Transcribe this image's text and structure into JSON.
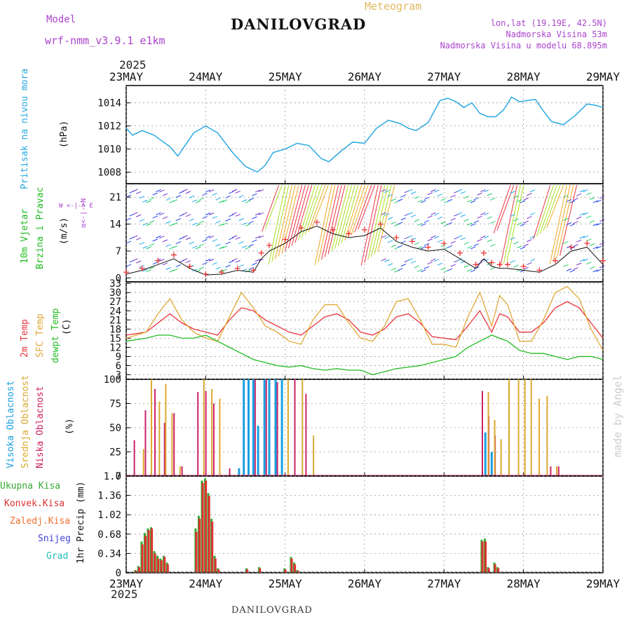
{
  "header": {
    "model_label": "Model",
    "model_name": "wrf-nmm_v3.9.1 e1km",
    "title": "DANILOVGRAD",
    "subtitle": "Meteogram",
    "lonlat": "lon,lat (19.19E, 42.5N)",
    "altitude": "Nadmorska Visina 53m",
    "model_altitude": "Nadmorska Visina u modelu 68.895m",
    "year_top": "2025",
    "year_bottom": "2025",
    "footer": "DANILOVGRAD",
    "watermark": "made by Angel"
  },
  "colors": {
    "pressure": "#2aa8e0",
    "t2m": "#e8343c",
    "sfc": "#e0a838",
    "dewpt": "#22bb22",
    "cloud_high": "#1a9ee0",
    "cloud_mid": "#dca830",
    "cloud_low": "#cc2266",
    "precip_total": "#33aa33",
    "precip_conv": "#e03030",
    "grid": "#999999",
    "label_purple": "#aa44cc"
  },
  "panel_labels": {
    "pressure": {
      "name": "Pritisak na nivou mora",
      "unit": "(hPa)"
    },
    "wind": {
      "name1": "10m Vjetar",
      "name2": "Brzina i Pravac",
      "unit": "(m/s)",
      "compass_ns": "α<-|->N",
      "compass_we": "W <-|-> E"
    },
    "temp": {
      "name1": "2m Temp",
      "name2": "SFC Temp",
      "name3": "dewpt Temp",
      "unit": "(C)"
    },
    "cloud": {
      "name1": "Visoka Oblacnost",
      "name2": "Srednja Oblacnost",
      "name3": "Niska Oblacnost",
      "unit": "(%)"
    },
    "precip": {
      "unit": "1hr Precip (mm)",
      "legend": [
        "Ukupna Kisa",
        "Konvek.Kisa",
        "Zaledj.Kisa",
        "Snijeg",
        "Grad"
      ]
    }
  },
  "chart_data": {
    "type": "line",
    "x_ticks": [
      "23MAY",
      "24MAY",
      "25MAY",
      "26MAY",
      "27MAY",
      "28MAY",
      "29MAY"
    ],
    "x_range_days": [
      0,
      6
    ],
    "panels": [
      {
        "id": "pressure",
        "ylim": [
          1007,
          1015.5
        ],
        "yticks": [
          "1008",
          "1010",
          "1012",
          "1014"
        ],
        "series": [
          {
            "name": "Pritisak na nivou mora",
            "x": [
              0,
              0.08,
              0.2,
              0.35,
              0.55,
              0.65,
              0.85,
              1.0,
              1.15,
              1.35,
              1.5,
              1.65,
              1.75,
              1.85,
              2.0,
              2.15,
              2.3,
              2.45,
              2.55,
              2.7,
              2.85,
              3.0,
              3.15,
              3.3,
              3.45,
              3.55,
              3.65,
              3.8,
              3.95,
              4.05,
              4.15,
              4.25,
              4.35,
              4.45,
              4.55,
              4.65,
              4.75,
              4.85,
              4.95,
              5.05,
              5.15,
              5.25,
              5.35,
              5.5,
              5.65,
              5.8,
              5.9,
              6.0
            ],
            "values": [
              1011.8,
              1011.2,
              1011.6,
              1011.2,
              1010.2,
              1009.4,
              1011.4,
              1012.0,
              1011.4,
              1009.6,
              1008.5,
              1008.0,
              1008.6,
              1009.7,
              1010.0,
              1010.5,
              1010.3,
              1009.2,
              1008.9,
              1009.8,
              1010.6,
              1010.5,
              1011.8,
              1012.5,
              1012.2,
              1011.8,
              1011.6,
              1012.3,
              1014.2,
              1014.4,
              1014.1,
              1013.6,
              1014.0,
              1013.1,
              1012.8,
              1012.8,
              1013.4,
              1014.5,
              1014.1,
              1014.2,
              1014.3,
              1013.3,
              1012.4,
              1012.1,
              1012.9,
              1013.9,
              1013.8,
              1013.6
            ]
          }
        ]
      },
      {
        "id": "wind",
        "ylim": [
          -1,
          24.5
        ],
        "yticks": [
          "0",
          "7",
          "14",
          "21"
        ],
        "series": [
          {
            "name": "10m Vjetar",
            "x": [
              0,
              0.2,
              0.4,
              0.6,
              0.8,
              1.0,
              1.2,
              1.4,
              1.6,
              1.7,
              1.8,
              2.0,
              2.2,
              2.4,
              2.6,
              2.8,
              3.0,
              3.2,
              3.4,
              3.6,
              3.8,
              4.0,
              4.2,
              4.4,
              4.5,
              4.6,
              4.7,
              4.8,
              5.0,
              5.2,
              5.4,
              5.6,
              5.8,
              6.0
            ],
            "values": [
              1.5,
              2.5,
              4.5,
              6.0,
              3.0,
              1.0,
              1.5,
              2.5,
              2.0,
              6.5,
              8.5,
              10,
              13,
              14.5,
              12.5,
              11.5,
              12.5,
              14,
              10.5,
              9.5,
              8.0,
              9.0,
              6.5,
              3.5,
              6.5,
              4.0,
              3.5,
              3.5,
              3.0,
              2.0,
              4.5,
              8.0,
              9.0,
              4.5
            ]
          },
          {
            "name": "Brzina i Pravac",
            "x": [
              0,
              0.2,
              0.4,
              0.6,
              0.8,
              1.0,
              1.2,
              1.4,
              1.6,
              1.7,
              1.8,
              2.0,
              2.2,
              2.4,
              2.6,
              2.8,
              3.0,
              3.2,
              3.4,
              3.6,
              3.8,
              4.0,
              4.2,
              4.4,
              4.5,
              4.6,
              4.7,
              4.8,
              5.0,
              5.2,
              5.4,
              5.6,
              5.8,
              6.0
            ],
            "values": [
              1.0,
              2.0,
              3.5,
              5.0,
              2.5,
              0.8,
              1.0,
              2.0,
              1.5,
              5.0,
              7.0,
              9.0,
              12,
              13.5,
              11.5,
              10.5,
              11,
              13,
              9.5,
              8.0,
              7.0,
              7.5,
              5.0,
              2.5,
              5.0,
              3.0,
              2.5,
              2.5,
              2.0,
              1.5,
              3.5,
              7.0,
              8.0,
              3.5
            ]
          }
        ]
      },
      {
        "id": "temp",
        "ylim": [
          1.5,
          33.5
        ],
        "yticks": [
          "3",
          "6",
          "9",
          "12",
          "15",
          "18",
          "21",
          "24",
          "27",
          "30",
          "33"
        ],
        "series": [
          {
            "name": "2m Temp",
            "x": [
              0,
              0.25,
              0.4,
              0.55,
              0.7,
              0.85,
              1.0,
              1.15,
              1.3,
              1.45,
              1.6,
              1.75,
              1.9,
              2.05,
              2.2,
              2.35,
              2.5,
              2.65,
              2.8,
              2.95,
              3.1,
              3.25,
              3.4,
              3.55,
              3.7,
              3.85,
              4.0,
              4.15,
              4.3,
              4.45,
              4.6,
              4.7,
              4.8,
              4.95,
              5.1,
              5.25,
              5.4,
              5.55,
              5.7,
              5.85,
              6.0
            ],
            "values": [
              16,
              17,
              20,
              23,
              20,
              18,
              17,
              16,
              21,
              25,
              24,
              21,
              19,
              17,
              16,
              19,
              22,
              23,
              21,
              17,
              16,
              18,
              22,
              23,
              20,
              15.5,
              15,
              14.5,
              19,
              24,
              17,
              23,
              22,
              17,
              17,
              20,
              25,
              27,
              25,
              20,
              15
            ]
          },
          {
            "name": "SFC Temp",
            "x": [
              0,
              0.25,
              0.4,
              0.55,
              0.7,
              0.85,
              1.0,
              1.15,
              1.3,
              1.45,
              1.6,
              1.75,
              1.9,
              2.05,
              2.2,
              2.35,
              2.5,
              2.65,
              2.8,
              2.95,
              3.1,
              3.25,
              3.4,
              3.55,
              3.7,
              3.85,
              4.0,
              4.15,
              4.3,
              4.45,
              4.6,
              4.7,
              4.8,
              4.95,
              5.1,
              5.25,
              5.4,
              5.55,
              5.7,
              5.85,
              6.0
            ],
            "values": [
              15,
              17,
              23,
              28,
              21,
              17,
              15,
              14,
              22,
              30,
              25,
              19,
              17,
              14,
              13,
              21,
              26,
              26,
              20,
              15,
              14,
              19,
              27,
              28,
              21,
              13,
              13,
              12,
              22,
              30,
              19,
              29,
              26,
              14,
              14,
              21,
              30,
              32,
              28,
              18,
              11
            ]
          },
          {
            "name": "dewpt Temp",
            "x": [
              0,
              0.25,
              0.4,
              0.55,
              0.7,
              0.85,
              1.0,
              1.15,
              1.3,
              1.45,
              1.6,
              1.75,
              1.9,
              2.05,
              2.2,
              2.35,
              2.5,
              2.65,
              2.8,
              2.95,
              3.1,
              3.25,
              3.4,
              3.55,
              3.7,
              3.85,
              4.0,
              4.15,
              4.3,
              4.45,
              4.6,
              4.7,
              4.8,
              4.95,
              5.1,
              5.25,
              5.4,
              5.55,
              5.7,
              5.85,
              6.0
            ],
            "values": [
              14,
              15,
              16,
              16,
              15,
              15,
              16,
              14,
              12,
              10,
              8,
              7,
              6,
              5.5,
              6,
              5,
              4.5,
              5,
              4.5,
              4.5,
              3,
              4,
              5,
              5.5,
              6,
              7,
              8,
              9,
              12,
              14,
              16,
              15,
              14,
              11,
              10,
              10,
              9,
              8,
              9,
              9,
              8
            ]
          }
        ]
      },
      {
        "id": "cloud",
        "ylim": [
          0,
          100
        ],
        "yticks": [
          "0",
          "25",
          "50",
          "75",
          "100"
        ],
        "bars_low": {
          "x": [
            0.12,
            0.26,
            0.38,
            0.5,
            0.62,
            0.72,
            0.92,
            1.02,
            1.12,
            1.32,
            1.5,
            1.64,
            1.78,
            1.92,
            2.14,
            2.28,
            4.5,
            4.58,
            4.66,
            5.36,
            5.46
          ],
          "values": [
            37,
            68,
            90,
            55,
            65,
            10,
            87,
            88,
            75,
            8,
            75,
            100,
            100,
            97,
            100,
            85,
            88,
            62,
            42,
            10,
            10
          ]
        },
        "bars_mid": {
          "x": [
            0.2,
            0.3,
            0.4,
            0.48,
            0.56,
            0.66,
            0.96,
            1.06,
            1.16,
            1.58,
            1.72,
            1.86,
            2.02,
            2.2,
            2.34,
            4.54,
            4.62,
            4.7,
            4.8,
            4.92,
            5.0,
            5.08,
            5.18,
            5.28,
            5.4
          ],
          "values": [
            28,
            100,
            77,
            95,
            65,
            10,
            100,
            90,
            80,
            70,
            100,
            100,
            100,
            100,
            42,
            87,
            58,
            38,
            100,
            100,
            100,
            100,
            80,
            83,
            10
          ]
        },
        "bars_high": {
          "x": [
            1.42,
            1.48,
            1.54,
            1.6,
            1.66,
            1.74,
            1.8,
            1.88,
            1.96,
            4.52,
            4.6
          ],
          "values": [
            8,
            100,
            100,
            100,
            52,
            100,
            100,
            100,
            100,
            45,
            25
          ]
        }
      },
      {
        "id": "precip",
        "ylim": [
          0,
          1.7
        ],
        "yticks": [
          "0",
          "0.34",
          "0.68",
          "1.02",
          "1.36",
          "1.7"
        ],
        "series": [
          {
            "name": "Ukupna Kisa",
            "x": [
              0.1,
              0.14,
              0.18,
              0.22,
              0.26,
              0.3,
              0.34,
              0.38,
              0.42,
              0.46,
              0.5,
              0.86,
              0.9,
              0.94,
              0.98,
              1.02,
              1.06,
              1.1,
              1.14,
              1.5,
              1.66,
              1.98,
              2.06,
              2.1,
              2.14,
              4.46,
              4.5,
              4.54,
              4.62,
              4.66
            ],
            "values": [
              0.05,
              0.12,
              0.55,
              0.7,
              0.78,
              0.8,
              0.38,
              0.3,
              0.25,
              0.3,
              0.18,
              0.78,
              1.0,
              1.62,
              1.66,
              1.4,
              0.95,
              0.3,
              0.08,
              0.08,
              0.1,
              0.08,
              0.28,
              0.18,
              0.05,
              0.58,
              0.6,
              0.1,
              0.18,
              0.1
            ]
          },
          {
            "name": "Konvek.Kisa",
            "x": [
              0.11,
              0.15,
              0.19,
              0.23,
              0.27,
              0.31,
              0.35,
              0.39,
              0.43,
              0.47,
              0.51,
              0.87,
              0.91,
              0.95,
              0.99,
              1.03,
              1.07,
              1.11,
              1.15,
              1.51,
              1.67,
              1.99,
              2.07,
              2.11,
              2.15,
              4.47,
              4.51,
              4.55,
              4.63,
              4.67
            ],
            "values": [
              0.04,
              0.1,
              0.5,
              0.65,
              0.75,
              0.78,
              0.34,
              0.25,
              0.22,
              0.28,
              0.15,
              0.72,
              0.95,
              1.58,
              1.62,
              1.35,
              0.9,
              0.25,
              0.06,
              0.06,
              0.08,
              0.06,
              0.25,
              0.15,
              0.03,
              0.55,
              0.55,
              0.08,
              0.15,
              0.08
            ]
          }
        ]
      }
    ]
  }
}
